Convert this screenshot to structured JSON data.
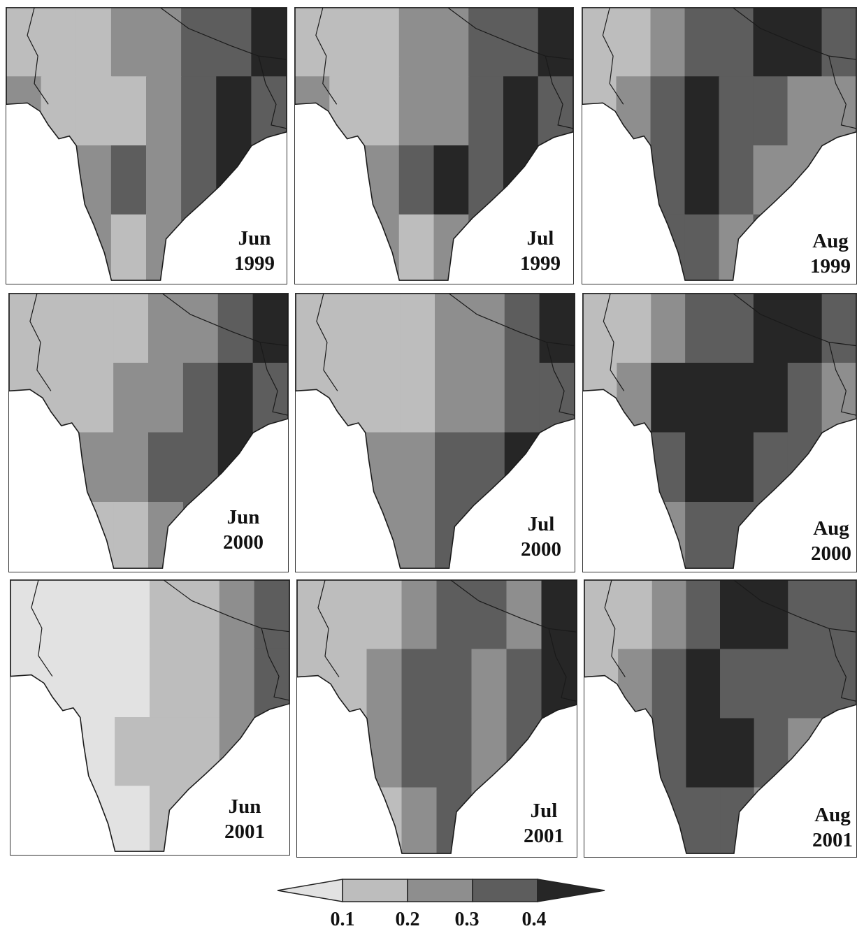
{
  "figure": {
    "colors": {
      "level_0": "#e2e2e2",
      "level_1": "#bdbdbd",
      "level_2": "#8e8e8e",
      "level_3": "#5d5d5d",
      "level_4": "#262626",
      "coast": "#1a1a1a",
      "ocean": "#ffffff"
    },
    "panels": [
      {
        "id": "jun-1999",
        "month": "Jun",
        "year": "1999",
        "levels": [
          1,
          1,
          1,
          2,
          2,
          3,
          3,
          4,
          2,
          1,
          1,
          1,
          2,
          3,
          4,
          3,
          1,
          1,
          2,
          3,
          2,
          3,
          4,
          3,
          1,
          2,
          2,
          1,
          2,
          3,
          2,
          3
        ]
      },
      {
        "id": "jul-1999",
        "month": "Jul",
        "year": "1999",
        "levels": [
          1,
          1,
          1,
          2,
          2,
          3,
          3,
          4,
          2,
          1,
          1,
          2,
          2,
          3,
          4,
          3,
          1,
          2,
          2,
          3,
          4,
          3,
          4,
          3,
          2,
          2,
          2,
          1,
          2,
          3,
          3,
          3
        ]
      },
      {
        "id": "aug-1999",
        "month": "Aug",
        "year": "1999",
        "levels": [
          1,
          1,
          2,
          3,
          3,
          4,
          4,
          3,
          1,
          2,
          3,
          4,
          3,
          3,
          2,
          2,
          1,
          2,
          3,
          4,
          3,
          2,
          2,
          2,
          1,
          2,
          3,
          3,
          2,
          3,
          3,
          2
        ]
      },
      {
        "id": "jun-2000",
        "month": "Jun",
        "year": "2000",
        "levels": [
          1,
          1,
          1,
          1,
          2,
          2,
          3,
          4,
          1,
          1,
          1,
          2,
          2,
          3,
          4,
          3,
          1,
          1,
          2,
          2,
          3,
          3,
          4,
          3,
          1,
          2,
          1,
          1,
          2,
          3,
          3,
          3
        ]
      },
      {
        "id": "jul-2000",
        "month": "Jul",
        "year": "2000",
        "levels": [
          1,
          1,
          1,
          1,
          2,
          2,
          3,
          4,
          1,
          1,
          1,
          1,
          2,
          2,
          3,
          3,
          1,
          2,
          2,
          2,
          3,
          3,
          4,
          4,
          2,
          3,
          2,
          2,
          3,
          3,
          4,
          4
        ]
      },
      {
        "id": "aug-2000",
        "month": "Aug",
        "year": "2000",
        "levels": [
          1,
          1,
          2,
          3,
          3,
          4,
          4,
          3,
          1,
          2,
          4,
          4,
          4,
          4,
          3,
          2,
          1,
          2,
          3,
          4,
          4,
          3,
          3,
          3,
          1,
          2,
          2,
          3,
          3,
          3,
          2,
          2
        ]
      },
      {
        "id": "jun-2001",
        "month": "Jun",
        "year": "2001",
        "levels": [
          0,
          0,
          0,
          0,
          1,
          1,
          2,
          3,
          0,
          0,
          0,
          0,
          1,
          1,
          2,
          3,
          0,
          0,
          0,
          1,
          1,
          1,
          2,
          2,
          0,
          0,
          0,
          0,
          1,
          1,
          1,
          2
        ]
      },
      {
        "id": "jul-2001",
        "month": "Jul",
        "year": "2001",
        "levels": [
          1,
          1,
          1,
          2,
          3,
          3,
          2,
          4,
          1,
          1,
          2,
          3,
          3,
          2,
          3,
          4,
          1,
          1,
          2,
          3,
          3,
          2,
          3,
          3,
          1,
          1,
          1,
          2,
          3,
          2,
          2,
          2
        ]
      },
      {
        "id": "aug-2001",
        "month": "Aug",
        "year": "2001",
        "levels": [
          1,
          1,
          2,
          3,
          4,
          4,
          3,
          3,
          1,
          2,
          3,
          4,
          3,
          3,
          3,
          3,
          1,
          2,
          3,
          4,
          4,
          3,
          2,
          2,
          1,
          2,
          3,
          3,
          3,
          2,
          2,
          2
        ]
      }
    ],
    "colorbar": {
      "ticks": [
        "0.1",
        "0.2",
        "0.3",
        "0.4"
      ]
    }
  }
}
